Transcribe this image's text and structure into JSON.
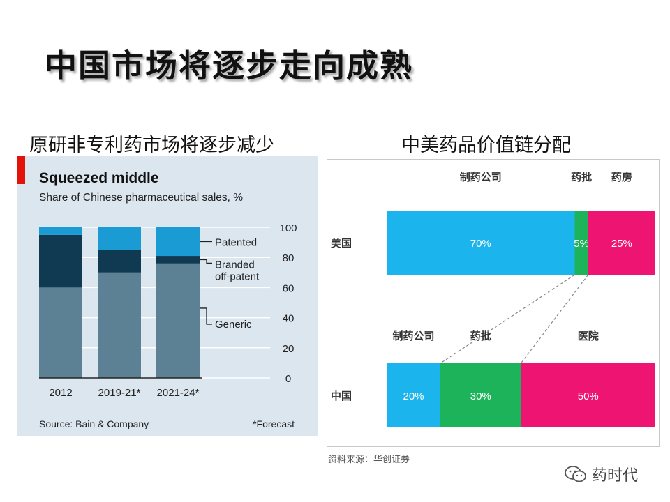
{
  "slide": {
    "title": "中国市场将逐步走向成熟",
    "left_subtitle": "原研非专利药市场将逐步减少",
    "right_subtitle": "中美药品价值链分配",
    "watermark": "药时代"
  },
  "chart_data": [
    {
      "type": "bar",
      "stacked": true,
      "title": "Squeezed middle",
      "subtitle": "Share of Chinese pharmaceutical sales, %",
      "categories": [
        "2012",
        "2019-21*",
        "2021-24*"
      ],
      "series": [
        {
          "name": "Generic",
          "values": [
            60,
            70,
            76
          ],
          "color": "#5d8194"
        },
        {
          "name": "Branded off-patent",
          "values": [
            35,
            15,
            5
          ],
          "color": "#0f3a52"
        },
        {
          "name": "Patented",
          "values": [
            5,
            15,
            19
          ],
          "color": "#1a9bd4"
        }
      ],
      "legend_labels": [
        "Patented",
        "Branded\noff-patent",
        "Generic"
      ],
      "ylim": [
        0,
        100
      ],
      "yticks": [
        0,
        20,
        40,
        60,
        80,
        100
      ],
      "source": "Source: Bain & Company",
      "note": "*Forecast"
    },
    {
      "type": "bar",
      "stacked": true,
      "orientation": "horizontal",
      "rows": [
        {
          "label": "美国",
          "segments": [
            {
              "name": "制药公司",
              "value": 70,
              "label": "70%",
              "color": "#1cb4ec"
            },
            {
              "name": "药批",
              "value": 5,
              "label": "5%",
              "color": "#1db35a"
            },
            {
              "name": "药房",
              "value": 25,
              "label": "25%",
              "color": "#ee1572"
            }
          ]
        },
        {
          "label": "中国",
          "segments": [
            {
              "name": "制药公司",
              "value": 20,
              "label": "20%",
              "color": "#1cb4ec"
            },
            {
              "name": "药批",
              "value": 30,
              "label": "30%",
              "color": "#1db35a"
            },
            {
              "name": "医院",
              "value": 50,
              "label": "50%",
              "color": "#ee1572"
            }
          ]
        }
      ],
      "source": "资料来源：华创证券"
    }
  ]
}
